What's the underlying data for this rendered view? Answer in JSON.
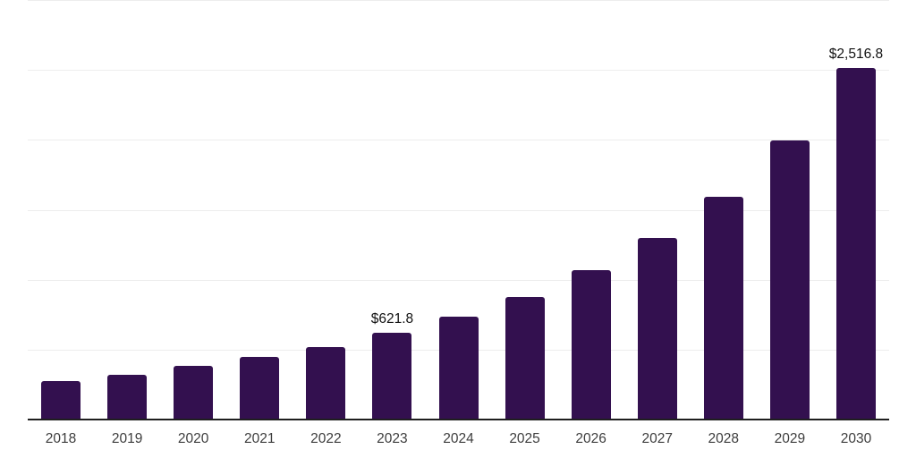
{
  "chart_data": {
    "type": "bar",
    "categories": [
      "2018",
      "2019",
      "2020",
      "2021",
      "2022",
      "2023",
      "2024",
      "2025",
      "2026",
      "2027",
      "2028",
      "2029",
      "2030"
    ],
    "values": [
      272,
      321,
      382,
      447,
      521,
      621.8,
      734,
      874,
      1066,
      1300,
      1596,
      1995,
      2516.8
    ],
    "point_labels": [
      "",
      "",
      "",
      "",
      "",
      "$621.8",
      "",
      "",
      "",
      "",
      "",
      "",
      "$2,516.8"
    ],
    "ylim": [
      0,
      3000
    ],
    "gridline_step": 500,
    "grid": "horizontal",
    "legend": "none"
  },
  "colors": {
    "bar": "#33104f",
    "gridline": "#ededed",
    "axis": "#1f1f1f",
    "tick_label": "#3d3d3d",
    "value_label": "#111111",
    "background": "#ffffff"
  }
}
